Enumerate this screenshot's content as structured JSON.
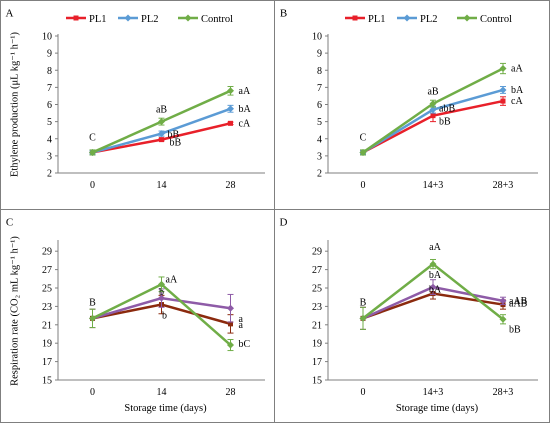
{
  "chart_data": [
    {
      "panel": "A",
      "type": "line",
      "categories": [
        "0",
        "14",
        "28"
      ],
      "ylabel": "Ethylene production (μL kg⁻¹ h⁻¹)",
      "xlabel": "",
      "ylim": [
        2,
        10
      ],
      "yticks": [
        2,
        3,
        4,
        5,
        6,
        7,
        8,
        9,
        10
      ],
      "legend": [
        "PL1",
        "PL2",
        "Control"
      ],
      "series": [
        {
          "name": "PL1",
          "color": "#e8202a",
          "values": [
            3.2,
            3.95,
            4.9
          ],
          "errors": [
            0.1,
            0.08,
            0.07
          ],
          "labels": [
            "",
            "bB",
            "cA"
          ]
        },
        {
          "name": "PL2",
          "color": "#5b9bd5",
          "values": [
            3.2,
            4.3,
            5.75
          ],
          "errors": [
            0.1,
            0.15,
            0.2
          ],
          "labels": [
            "C",
            "bB",
            "bA"
          ]
        },
        {
          "name": "Control",
          "color": "#70ad47",
          "values": [
            3.2,
            5.0,
            6.8
          ],
          "errors": [
            0.15,
            0.2,
            0.25
          ],
          "labels": [
            "",
            "aB",
            "aA"
          ]
        }
      ]
    },
    {
      "panel": "B",
      "type": "line",
      "categories": [
        "0",
        "14+3",
        "28+3"
      ],
      "ylabel": "",
      "xlabel": "",
      "ylim": [
        2,
        10
      ],
      "yticks": [
        2,
        3,
        4,
        5,
        6,
        7,
        8,
        9,
        10
      ],
      "legend": [
        "PL1",
        "PL2",
        "Control"
      ],
      "series": [
        {
          "name": "PL1",
          "color": "#e8202a",
          "values": [
            3.2,
            5.35,
            6.2
          ],
          "errors": [
            0.1,
            0.35,
            0.25
          ],
          "labels": [
            "",
            "bB",
            "cA"
          ]
        },
        {
          "name": "PL2",
          "color": "#5b9bd5",
          "values": [
            3.2,
            5.7,
            6.85
          ],
          "errors": [
            0.1,
            0.2,
            0.2
          ],
          "labels": [
            "C",
            "abB",
            "bA"
          ]
        },
        {
          "name": "Control",
          "color": "#70ad47",
          "values": [
            3.2,
            6.05,
            8.1
          ],
          "errors": [
            0.15,
            0.2,
            0.3
          ],
          "labels": [
            "",
            "aB",
            "aA"
          ]
        }
      ]
    },
    {
      "panel": "C",
      "type": "line",
      "categories": [
        "0",
        "14",
        "28"
      ],
      "ylabel": "Respiration rate (CO₂ mL kg⁻¹ h⁻¹)",
      "xlabel": "Storage time (days)",
      "ylim": [
        15,
        30
      ],
      "yticks": [
        15,
        17,
        19,
        21,
        23,
        25,
        27,
        29
      ],
      "series": [
        {
          "name": "PL1",
          "color": "#8b2a0e",
          "values": [
            21.7,
            23.2,
            21.1
          ],
          "errors": [
            1.0,
            1.0,
            1.0
          ],
          "labels": [
            "",
            "b",
            "a"
          ]
        },
        {
          "name": "PL2",
          "color": "#8e5ba7",
          "values": [
            21.7,
            23.9,
            22.8
          ],
          "errors": [
            1.0,
            1.0,
            1.5
          ],
          "labels": [
            "B",
            "b",
            "a"
          ]
        },
        {
          "name": "Control",
          "color": "#70ad47",
          "values": [
            21.7,
            25.4,
            18.8
          ],
          "errors": [
            1.0,
            0.8,
            0.6
          ],
          "labels": [
            "",
            "aA",
            "bC"
          ]
        }
      ]
    },
    {
      "panel": "D",
      "type": "line",
      "categories": [
        "0",
        "14+3",
        "28+3"
      ],
      "ylabel": "",
      "xlabel": "Storage time (days)",
      "ylim": [
        15,
        30
      ],
      "yticks": [
        15,
        17,
        19,
        21,
        23,
        25,
        27,
        29
      ],
      "series": [
        {
          "name": "PL1",
          "color": "#8b2a0e",
          "values": [
            21.7,
            24.4,
            23.2
          ],
          "errors": [
            1.2,
            0.6,
            0.5
          ],
          "labels": [
            "",
            "bA",
            "aAB"
          ]
        },
        {
          "name": "PL2",
          "color": "#8e5ba7",
          "values": [
            21.7,
            25.1,
            23.6
          ],
          "errors": [
            1.2,
            0.8,
            0.4
          ],
          "labels": [
            "B",
            "bA",
            "aAB"
          ]
        },
        {
          "name": "Control",
          "color": "#70ad47",
          "values": [
            21.7,
            27.6,
            21.6
          ],
          "errors": [
            1.2,
            0.5,
            0.5
          ],
          "labels": [
            "",
            "aA",
            "bB"
          ]
        }
      ]
    }
  ]
}
